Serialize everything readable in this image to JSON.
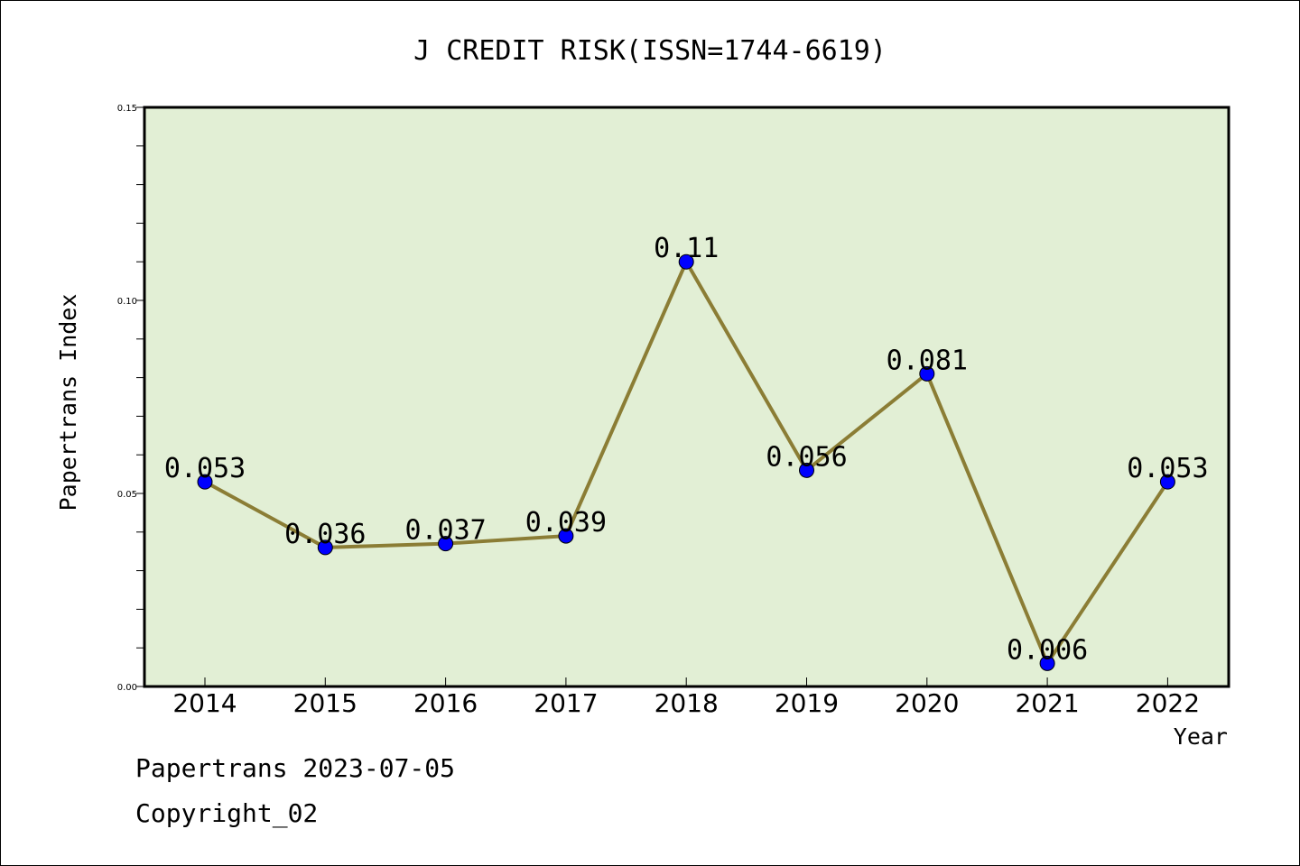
{
  "chart_data": {
    "type": "line",
    "title": "J CREDIT RISK(ISSN=1744-6619)",
    "xlabel": "Year",
    "ylabel": "Papertrans Index",
    "categories": [
      "2014",
      "2015",
      "2016",
      "2017",
      "2018",
      "2019",
      "2020",
      "2021",
      "2022"
    ],
    "series": [
      {
        "values": [
          0.053,
          0.036,
          0.037,
          0.039,
          0.11,
          0.056,
          0.081,
          0.006,
          0.053
        ],
        "data_labels": [
          "0.053",
          "0.036",
          "0.037",
          "0.039",
          "0.11",
          "0.056",
          "0.081",
          "0.006",
          "0.053"
        ]
      }
    ],
    "ylim": [
      0,
      0.15
    ],
    "yticks": [
      0.0,
      0.05,
      0.1,
      0.15
    ],
    "ytick_labels": [
      "0.00",
      "0.05",
      "0.10",
      "0.15"
    ],
    "y_minor_step": 0.01,
    "grid": false,
    "legend": false,
    "colors": {
      "plot_background": "#e2efd5",
      "line": "#8b7d35",
      "marker": "#0000ff"
    }
  },
  "footer": {
    "line1": "Papertrans 2023-07-05",
    "line2": "Copyright_02"
  }
}
